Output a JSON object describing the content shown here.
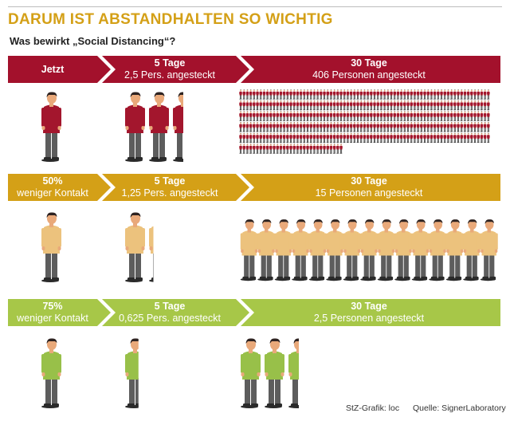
{
  "header": {
    "title": "DARUM IST ABSTANDHALTEN SO WICHTIG",
    "subtitle": "Was bewirkt „Social Distancing“?"
  },
  "colors": {
    "red": "#a3112c",
    "gold": "#d4a017",
    "green": "#a7c748",
    "shirt_red": "#a3162d",
    "shirt_yellow": "#ecc27d",
    "shirt_green": "#98c049",
    "skin": "#e9a97a",
    "hair": "#2e2321",
    "pants": "#5d5d5d",
    "shoes": "#2a2a2a"
  },
  "scenarios": [
    {
      "id": "base",
      "color_key": "red",
      "shirt_key": "shirt_red",
      "col1": {
        "line1": "Jetzt",
        "line2": ""
      },
      "col2": {
        "line1": "5 Tage",
        "line2": "2,5 Pers. angesteckt"
      },
      "col3": {
        "line1": "30 Tage",
        "line2": "406 Personen angesteckt"
      },
      "persons_start": 1,
      "persons_5_days": 2.5,
      "persons_30_days": 406
    },
    {
      "id": "half",
      "color_key": "gold",
      "shirt_key": "shirt_yellow",
      "col1": {
        "line1": "50%",
        "line2": "weniger Kontakt"
      },
      "col2": {
        "line1": "5 Tage",
        "line2": "1,25 Pers. angesteckt"
      },
      "col3": {
        "line1": "30 Tage",
        "line2": "15 Personen angesteckt"
      },
      "persons_start": 1,
      "persons_5_days": 1.25,
      "persons_30_days": 15
    },
    {
      "id": "quarter",
      "color_key": "green",
      "shirt_key": "shirt_green",
      "col1": {
        "line1": "75%",
        "line2": "weniger Kontakt"
      },
      "col2": {
        "line1": "5 Tage",
        "line2": "0,625 Pers. angesteckt"
      },
      "col3": {
        "line1": "30 Tage",
        "line2": "2,5 Personen angesteckt"
      },
      "persons_start": 1,
      "persons_5_days": 0.625,
      "persons_30_days": 2.5
    }
  ],
  "footer": {
    "credit": "StZ-Grafik: loc",
    "source": "Quelle: SignerLaboratory"
  }
}
